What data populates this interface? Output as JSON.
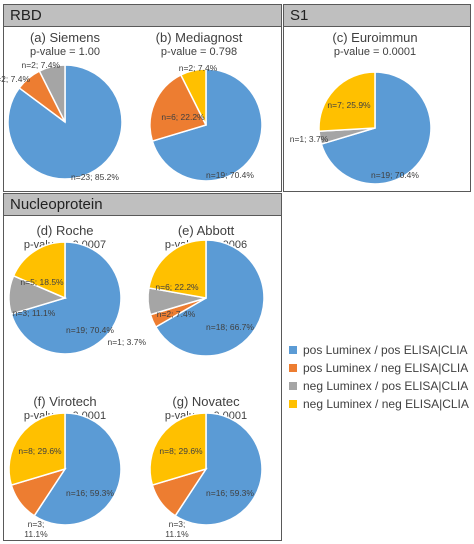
{
  "panels": [
    {
      "key": "rbd",
      "label": "RBD"
    },
    {
      "key": "s1",
      "label": "S1"
    },
    {
      "key": "nucleoprotein",
      "label": "Nucleoprotein"
    }
  ],
  "legend": [
    {
      "name": "pos Luminex / pos ELISA|CLIA",
      "color": "#5b9bd5"
    },
    {
      "name": "pos Luminex / neg ELISA|CLIA",
      "color": "#ed7d31"
    },
    {
      "name": "neg Luminex / pos ELISA|CLIA",
      "color": "#a5a5a5"
    },
    {
      "name": "neg Luminex / neg ELISA|CLIA",
      "color": "#ffc000"
    }
  ],
  "chart_data": [
    {
      "type": "pie",
      "title": "(a) Siemens",
      "subtitle": "p-value = 1.00",
      "values": [
        23,
        2,
        2,
        0
      ],
      "labels": [
        "n=23; 85.2%",
        "n=2; 7.4%",
        "n=2; 7.4%",
        ""
      ]
    },
    {
      "type": "pie",
      "title": "(b) Mediagnost",
      "subtitle": "p-value = 0.798",
      "values": [
        19,
        6,
        0,
        2
      ],
      "labels": [
        "n=19; 70.4%",
        "n=6; 22.2%",
        "",
        "n=2; 7.4%"
      ]
    },
    {
      "type": "pie",
      "title": "(c) Euroimmun",
      "subtitle": "p-value = 0.0001",
      "values": [
        19,
        0,
        1,
        7
      ],
      "labels": [
        "n=19; 70.4%",
        "",
        "n=1; 3.7%",
        "n=7; 25.9%"
      ]
    },
    {
      "type": "pie",
      "title": "(d) Roche",
      "subtitle": "p-value = 0.0007",
      "values": [
        19,
        0,
        3,
        5
      ],
      "labels": [
        "n=19; 70.4%",
        "",
        "n=3; 11.1%",
        "n=5; 18.5%"
      ]
    },
    {
      "type": "pie",
      "title": "(e) Abbott",
      "subtitle": "p-value = 0.0006",
      "values": [
        18,
        1,
        2,
        6
      ],
      "labels": [
        "n=18; 66.7%",
        "n=1; 3.7%",
        "n=2; 7.4%",
        "n=6; 22.2%"
      ]
    },
    {
      "type": "pie",
      "title": "(f) Virotech",
      "subtitle": "p-value = 0.0001",
      "values": [
        16,
        3,
        0,
        8
      ],
      "labels": [
        "n=16; 59.3%",
        "n=3;\n11.1%",
        "",
        "n=8; 29.6%"
      ]
    },
    {
      "type": "pie",
      "title": "(g) Novatec",
      "subtitle": "p-value = 0.0001",
      "values": [
        16,
        3,
        0,
        8
      ],
      "labels": [
        "n=16; 59.3%",
        "n=3;\n11.1%",
        "",
        "n=8; 29.6%"
      ]
    }
  ]
}
